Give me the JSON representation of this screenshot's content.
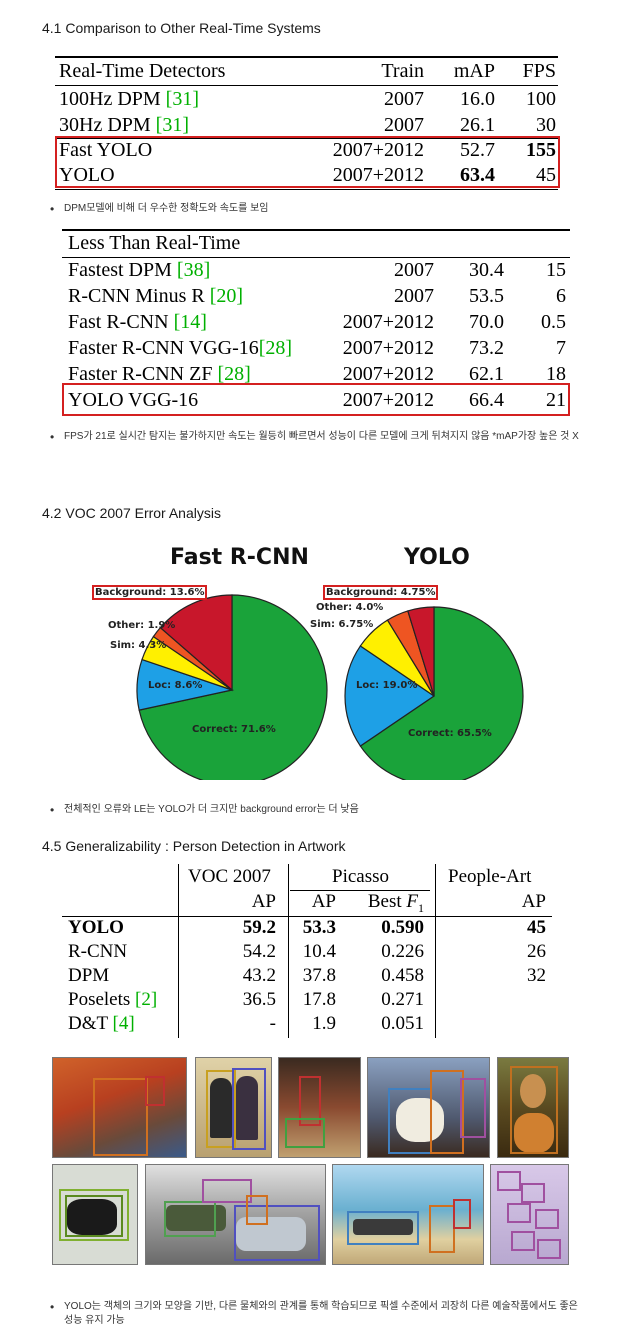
{
  "section1": {
    "heading": "4.1 Comparison to Other Real-Time Systems",
    "header": [
      "Real-Time Detectors",
      "Train",
      "mAP",
      "FPS"
    ],
    "rows": [
      {
        "name": "100Hz DPM ",
        "ref": "[31]",
        "train": "2007",
        "map": "16.0",
        "fps": "100"
      },
      {
        "name": "30Hz DPM ",
        "ref": "[31]",
        "train": "2007",
        "map": "26.1",
        "fps": "30"
      },
      {
        "name": "Fast YOLO",
        "ref": "",
        "train": "2007+2012",
        "map": "52.7",
        "fps": "155"
      },
      {
        "name": "YOLO",
        "ref": "",
        "train": "2007+2012",
        "map": "63.4",
        "fps": "45"
      }
    ],
    "bullet": "DPM모델에 비해 더 우수한 정확도와 속도를 보임"
  },
  "section2": {
    "header": "Less Than Real-Time",
    "rows": [
      {
        "name": "Fastest DPM ",
        "ref": "[38]",
        "train": "2007",
        "map": "30.4",
        "fps": "15"
      },
      {
        "name": "R-CNN Minus R ",
        "ref": "[20]",
        "train": "2007",
        "map": "53.5",
        "fps": "6"
      },
      {
        "name": "Fast R-CNN ",
        "ref": "[14]",
        "train": "2007+2012",
        "map": "70.0",
        "fps": "0.5"
      },
      {
        "name": "Faster R-CNN VGG-16",
        "ref": "[28]",
        "train": "2007+2012",
        "map": "73.2",
        "fps": "7"
      },
      {
        "name": "Faster R-CNN ZF ",
        "ref": "[28]",
        "train": "2007+2012",
        "map": "62.1",
        "fps": "18"
      },
      {
        "name": "YOLO VGG-16",
        "ref": "",
        "train": "2007+2012",
        "map": "66.4",
        "fps": "21"
      }
    ],
    "bullet": "FPS가 21로 실시간 탐지는 불가하지만 속도는 월등히 빠르면서 성능이 다른 모델에 크게 뒤쳐지지 않음 *mAP가장 높은 것 X"
  },
  "section3": {
    "heading": "4.2 VOC 2007 Error Analysis",
    "bullet": "전체적인 오류와 LE는 YOLO가 더 크지만 background error는 더 낮음"
  },
  "chart_data": [
    {
      "type": "pie",
      "title": "Fast R-CNN",
      "categories": [
        "Correct",
        "Loc",
        "Sim",
        "Other",
        "Background"
      ],
      "values": [
        71.6,
        8.6,
        4.3,
        1.9,
        13.6
      ],
      "labels": [
        "Correct: 71.6%",
        "Loc: 8.6%",
        "Sim: 4.3%",
        "Other: 1.9%",
        "Background: 13.6%"
      ],
      "colors": [
        "#1aa33a",
        "#1ea0e6",
        "#fff000",
        "#ee5522",
        "#c8172b"
      ]
    },
    {
      "type": "pie",
      "title": "YOLO",
      "categories": [
        "Correct",
        "Loc",
        "Sim",
        "Other",
        "Background"
      ],
      "values": [
        65.5,
        19.0,
        6.75,
        4.0,
        4.75
      ],
      "labels": [
        "Correct: 65.5%",
        "Loc: 19.0%",
        "Sim: 6.75%",
        "Other: 4.0%",
        "Background: 4.75%"
      ],
      "colors": [
        "#1aa33a",
        "#1ea0e6",
        "#fff000",
        "#ee5522",
        "#c8172b"
      ]
    }
  ],
  "section4": {
    "heading": "4.5 Generalizability : Person Detection in Artwork",
    "col_groups": [
      "VOC 2007",
      "Picasso",
      "People-Art"
    ],
    "subheads": [
      "AP",
      "AP",
      "Best ",
      "F",
      "1",
      "AP"
    ],
    "rows": [
      {
        "name": "YOLO",
        "ref": "",
        "voc": "59.2",
        "pap": "53.3",
        "f1": "0.590",
        "pa": "45"
      },
      {
        "name": "R-CNN",
        "ref": "",
        "voc": "54.2",
        "pap": "10.4",
        "f1": "0.226",
        "pa": "26"
      },
      {
        "name": "DPM",
        "ref": "",
        "voc": "43.2",
        "pap": "37.8",
        "f1": "0.458",
        "pa": "32"
      },
      {
        "name": "Poselets ",
        "ref": "[2]",
        "voc": "36.5",
        "pap": "17.8",
        "f1": "0.271",
        "pa": ""
      },
      {
        "name": "D&T ",
        "ref": "[4]",
        "voc": "-",
        "pap": "1.9",
        "f1": "0.051",
        "pa": ""
      }
    ],
    "bullet": "YOLO는 객체의 크기와 모양을 기반, 다른 물체와의 관계를 통해 학습되므로 픽셀 수준에서 괴장히 다른 예술작품에서도 좋은 성능 유지 가능"
  },
  "artworks": [
    {
      "name": "scream",
      "bg": "#b85a2a"
    },
    {
      "name": "figures",
      "bg": "#c9b58a"
    },
    {
      "name": "bar-scene",
      "bg": "#6a3a28"
    },
    {
      "name": "dog-people",
      "bg": "#5a6c88"
    },
    {
      "name": "mona-lisa",
      "bg": "#8a6a2a"
    },
    {
      "name": "sketch-birds",
      "bg": "#cfd4cc"
    },
    {
      "name": "cars",
      "bg": "#8a8a8a"
    },
    {
      "name": "beach",
      "bg": "#5aa0c0"
    },
    {
      "name": "jets",
      "bg": "#c8b8d8"
    }
  ]
}
